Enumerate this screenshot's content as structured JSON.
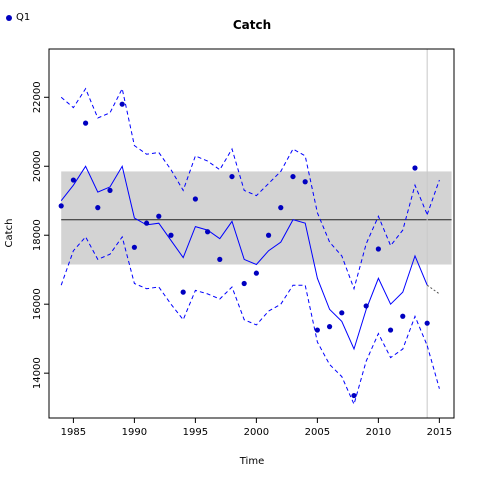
{
  "legend": {
    "label": "Q1",
    "color": "#0000c0"
  },
  "chart_data": {
    "type": "line",
    "title": "Catch",
    "xlabel": "Time",
    "ylabel": "Catch",
    "xlim": [
      1983,
      2016.2
    ],
    "ylim": [
      12700,
      23400
    ],
    "xticks": [
      1985,
      1990,
      1995,
      2000,
      2005,
      2010,
      2015
    ],
    "yticks": [
      14000,
      16000,
      18000,
      20000,
      22000
    ],
    "colors": {
      "line": "#0000ff",
      "points": "#0000c0",
      "band": "#d3d3d3",
      "mean": "#222222",
      "vline": "#c8c8c8",
      "tail": "#555555"
    },
    "band": {
      "lower": 17150,
      "upper": 19850,
      "xmin": 1984,
      "xmax": 2016
    },
    "mean_line": 18450,
    "vline_x": 2014,
    "fitted": {
      "x": [
        1984,
        1985,
        1986,
        1987,
        1988,
        1989,
        1990,
        1991,
        1992,
        1993,
        1994,
        1995,
        1996,
        1997,
        1998,
        1999,
        2000,
        2001,
        2002,
        2003,
        2004,
        2005,
        2006,
        2007,
        2008,
        2009,
        2010,
        2011,
        2012,
        2013,
        2014
      ],
      "y": [
        19000,
        19450,
        20000,
        19250,
        19400,
        20000,
        18500,
        18300,
        18350,
        17850,
        17350,
        18250,
        18150,
        17900,
        18400,
        17300,
        17150,
        17550,
        17800,
        18450,
        18350,
        16750,
        15850,
        15500,
        14700,
        15850,
        16750,
        16000,
        16350,
        17400,
        16550
      ]
    },
    "upper": {
      "x": [
        1984,
        1985,
        1986,
        1987,
        1988,
        1989,
        1990,
        1991,
        1992,
        1993,
        1994,
        1995,
        1996,
        1997,
        1998,
        1999,
        2000,
        2001,
        2002,
        2003,
        2004,
        2005,
        2006,
        2007,
        2008,
        2009,
        2010,
        2011,
        2012,
        2013,
        2014
      ],
      "y": [
        22000,
        21700,
        22250,
        21400,
        21550,
        22250,
        20600,
        20350,
        20400,
        19900,
        19300,
        20300,
        20150,
        19900,
        20500,
        19300,
        19150,
        19500,
        19850,
        20500,
        20300,
        18650,
        17800,
        17400,
        16450,
        17750,
        18550,
        17700,
        18150,
        19450,
        18600
      ]
    },
    "lower": {
      "x": [
        1984,
        1985,
        1986,
        1987,
        1988,
        1989,
        1990,
        1991,
        1992,
        1993,
        1994,
        1995,
        1996,
        1997,
        1998,
        1999,
        2000,
        2001,
        2002,
        2003,
        2004,
        2005,
        2006,
        2007,
        2008,
        2009,
        2010,
        2011,
        2012,
        2013,
        2014
      ],
      "y": [
        16550,
        17550,
        17950,
        17300,
        17450,
        17950,
        16600,
        16450,
        16500,
        16000,
        15550,
        16400,
        16300,
        16150,
        16500,
        15550,
        15400,
        15800,
        16000,
        16550,
        16550,
        14900,
        14250,
        13900,
        13100,
        14350,
        15150,
        14450,
        14700,
        15650,
        14800
      ]
    },
    "forecast": {
      "central": {
        "x": [
          2014,
          2015
        ],
        "y": [
          16550,
          16300
        ]
      },
      "upper": {
        "x": [
          2014,
          2015
        ],
        "y": [
          18600,
          19600
        ]
      },
      "lower": {
        "x": [
          2014,
          2015
        ],
        "y": [
          14800,
          13550
        ]
      }
    },
    "points": {
      "name": "Q1",
      "x": [
        1984,
        1985,
        1986,
        1987,
        1988,
        1989,
        1990,
        1991,
        1992,
        1993,
        1994,
        1995,
        1996,
        1997,
        1998,
        1999,
        2000,
        2001,
        2002,
        2003,
        2004,
        2005,
        2006,
        2007,
        2008,
        2009,
        2010,
        2011,
        2012,
        2013,
        2014
      ],
      "y": [
        18850,
        19600,
        21250,
        18800,
        19300,
        21800,
        17650,
        18350,
        18550,
        18000,
        16350,
        19050,
        18100,
        17300,
        19700,
        16600,
        16900,
        18000,
        18800,
        19700,
        19550,
        15250,
        15350,
        15750,
        13350,
        15950,
        17600,
        15250,
        15650,
        19950,
        15450
      ]
    }
  }
}
